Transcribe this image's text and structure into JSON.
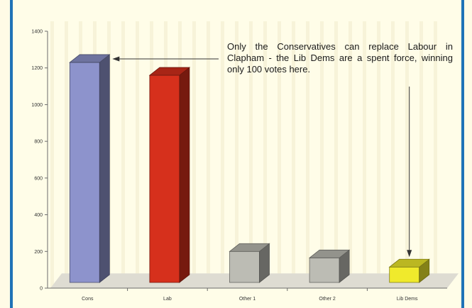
{
  "colors": {
    "frame_border": "#1f73b7",
    "background": "#fffde8",
    "stripe": "#f7f3d9",
    "floor": "#dedcd2",
    "con_bar": "#8d93cc",
    "lab_bar": "#d6301c",
    "other_bar": "#bcbcb4",
    "libdem_bar": "#f0ea2c"
  },
  "chart_data": {
    "type": "bar",
    "title": "",
    "xlabel": "",
    "ylabel": "",
    "ylim": [
      0,
      1400
    ],
    "yticks": [
      0,
      200,
      400,
      600,
      800,
      1000,
      1200,
      1400
    ],
    "ytick_labels": [
      "0",
      "200",
      "400",
      "600",
      "800",
      "1000",
      "1200",
      "1400"
    ],
    "categories": [
      "Cons",
      "Lab",
      "Other 1",
      "Other 2",
      "Lib Dems"
    ],
    "values": [
      1230,
      1160,
      200,
      165,
      115
    ],
    "bar_colors": [
      "#8d93cc",
      "#d6301c",
      "#bcbcb4",
      "#bcbcb4",
      "#f0ea2c"
    ],
    "grid": false,
    "three_d": true,
    "annotation": "Only the Conservatives can replace Labour in Clapham - the Lib Dems are a spent force, winning only 100 votes here."
  }
}
